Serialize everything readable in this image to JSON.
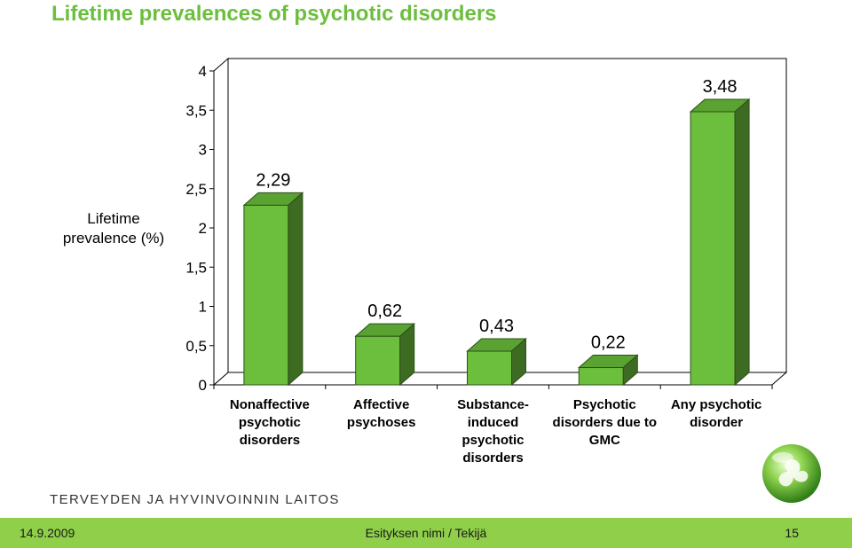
{
  "slide": {
    "title": "Lifetime prevalences of psychotic disorders",
    "organization": "TERVEYDEN JA HYVINVOINNIN LAITOS",
    "footer": {
      "date": "14.9.2009",
      "center": "Esityksen nimi / Tekijä",
      "page": "15"
    }
  },
  "chart_data": {
    "type": "bar",
    "title": "",
    "ylabel": "Lifetime prevalence (%)",
    "xlabel": "",
    "ylim": [
      0,
      4
    ],
    "yticks": [
      "0",
      "0,5",
      "1",
      "1,5",
      "2",
      "2,5",
      "3",
      "3,5",
      "4"
    ],
    "categories": [
      "Nonaffective psychotic disorders",
      "Affective psychoses",
      "Substance-induced psychotic disorders",
      "Psychotic disorders due to GMC",
      "Any psychotic disorder"
    ],
    "category_lines": [
      [
        "Nonaffective",
        "psychotic",
        "disorders"
      ],
      [
        "Affective",
        "psychoses"
      ],
      [
        "Substance-",
        "induced",
        "psychotic",
        "disorders"
      ],
      [
        "Psychotic",
        "disorders due to",
        "GMC"
      ],
      [
        "Any psychotic",
        "disorder"
      ]
    ],
    "values": [
      2.29,
      0.62,
      0.43,
      0.22,
      3.48
    ],
    "value_labels": [
      "2,29",
      "0,62",
      "0,43",
      "0,22",
      "3,48"
    ],
    "grid": false,
    "legend": "none",
    "colors": {
      "bar_front": "#6cbf3c",
      "bar_top": "#5aa232",
      "bar_side": "#3d6b21",
      "wall_edge": "#000000",
      "title": "#6cbf3c",
      "footer": "#8fcf4a"
    }
  }
}
